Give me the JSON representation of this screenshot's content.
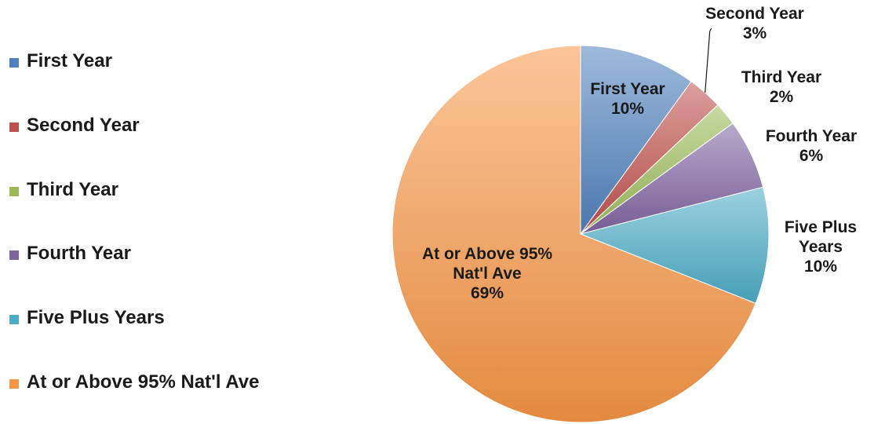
{
  "chart_data": {
    "type": "pie",
    "title": "",
    "legend_position": "left",
    "slices": [
      {
        "label": "First Year",
        "value": 10,
        "value_label": "10%",
        "color": "#4f81bd",
        "legend_label": "First Year",
        "slice_label_lines": [
          "First Year",
          "10%"
        ]
      },
      {
        "label": "Second Year",
        "value": 3,
        "value_label": "3%",
        "color": "#c0504d",
        "legend_label": "Second Year",
        "slice_label_lines": [
          "Second Year",
          "3%"
        ]
      },
      {
        "label": "Third Year",
        "value": 2,
        "value_label": "2%",
        "color": "#9bbb59",
        "legend_label": "Third Year",
        "slice_label_lines": [
          "Third Year",
          "2%"
        ]
      },
      {
        "label": "Fourth Year",
        "value": 6,
        "value_label": "6%",
        "color": "#8064a2",
        "legend_label": "Fourth Year",
        "slice_label_lines": [
          "Fourth Year",
          "6%"
        ]
      },
      {
        "label": "Five Plus Years",
        "value": 10,
        "value_label": "10%",
        "color": "#4bacc6",
        "legend_label": "Five Plus Years",
        "slice_label_lines": [
          "Five Plus",
          "Years",
          "10%"
        ]
      },
      {
        "label": "At or Above 95% Nat'l Ave",
        "value": 69,
        "value_label": "69%",
        "color": "#f79646",
        "legend_label": "At or Above 95% Nat'l Ave",
        "slice_label_lines": [
          "At or Above 95%",
          "Nat'l Ave",
          "69%"
        ]
      }
    ]
  }
}
